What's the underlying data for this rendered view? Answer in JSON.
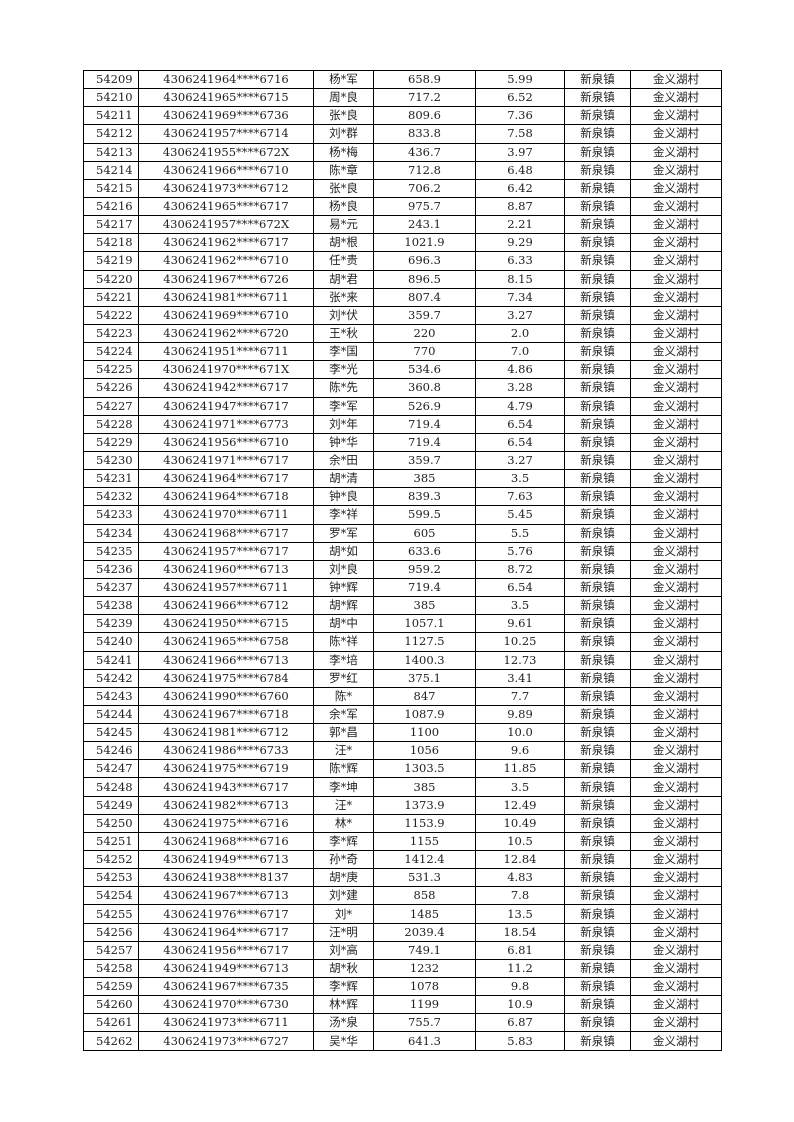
{
  "table": {
    "rows": [
      [
        "54209",
        "4306241964****6716",
        "杨*军",
        "658.9",
        "5.99",
        "新泉镇",
        "金义湖村"
      ],
      [
        "54210",
        "4306241965****6715",
        "周*良",
        "717.2",
        "6.52",
        "新泉镇",
        "金义湖村"
      ],
      [
        "54211",
        "4306241969****6736",
        "张*良",
        "809.6",
        "7.36",
        "新泉镇",
        "金义湖村"
      ],
      [
        "54212",
        "4306241957****6714",
        "刘*群",
        "833.8",
        "7.58",
        "新泉镇",
        "金义湖村"
      ],
      [
        "54213",
        "4306241955****672X",
        "杨*梅",
        "436.7",
        "3.97",
        "新泉镇",
        "金义湖村"
      ],
      [
        "54214",
        "4306241966****6710",
        "陈*章",
        "712.8",
        "6.48",
        "新泉镇",
        "金义湖村"
      ],
      [
        "54215",
        "4306241973****6712",
        "张*良",
        "706.2",
        "6.42",
        "新泉镇",
        "金义湖村"
      ],
      [
        "54216",
        "4306241965****6717",
        "杨*良",
        "975.7",
        "8.87",
        "新泉镇",
        "金义湖村"
      ],
      [
        "54217",
        "4306241957****672X",
        "易*元",
        "243.1",
        "2.21",
        "新泉镇",
        "金义湖村"
      ],
      [
        "54218",
        "4306241962****6717",
        "胡*根",
        "1021.9",
        "9.29",
        "新泉镇",
        "金义湖村"
      ],
      [
        "54219",
        "4306241962****6710",
        "任*贵",
        "696.3",
        "6.33",
        "新泉镇",
        "金义湖村"
      ],
      [
        "54220",
        "4306241967****6726",
        "胡*君",
        "896.5",
        "8.15",
        "新泉镇",
        "金义湖村"
      ],
      [
        "54221",
        "4306241981****6711",
        "张*来",
        "807.4",
        "7.34",
        "新泉镇",
        "金义湖村"
      ],
      [
        "54222",
        "4306241969****6710",
        "刘*伏",
        "359.7",
        "3.27",
        "新泉镇",
        "金义湖村"
      ],
      [
        "54223",
        "4306241962****6720",
        "王*秋",
        "220",
        "2.0",
        "新泉镇",
        "金义湖村"
      ],
      [
        "54224",
        "4306241951****6711",
        "李*国",
        "770",
        "7.0",
        "新泉镇",
        "金义湖村"
      ],
      [
        "54225",
        "4306241970****671X",
        "李*光",
        "534.6",
        "4.86",
        "新泉镇",
        "金义湖村"
      ],
      [
        "54226",
        "4306241942****6717",
        "陈*先",
        "360.8",
        "3.28",
        "新泉镇",
        "金义湖村"
      ],
      [
        "54227",
        "4306241947****6717",
        "李*军",
        "526.9",
        "4.79",
        "新泉镇",
        "金义湖村"
      ],
      [
        "54228",
        "4306241971****6773",
        "刘*年",
        "719.4",
        "6.54",
        "新泉镇",
        "金义湖村"
      ],
      [
        "54229",
        "4306241956****6710",
        "钟*华",
        "719.4",
        "6.54",
        "新泉镇",
        "金义湖村"
      ],
      [
        "54230",
        "4306241971****6717",
        "余*田",
        "359.7",
        "3.27",
        "新泉镇",
        "金义湖村"
      ],
      [
        "54231",
        "4306241964****6717",
        "胡*清",
        "385",
        "3.5",
        "新泉镇",
        "金义湖村"
      ],
      [
        "54232",
        "4306241964****6718",
        "钟*良",
        "839.3",
        "7.63",
        "新泉镇",
        "金义湖村"
      ],
      [
        "54233",
        "4306241970****6711",
        "李*祥",
        "599.5",
        "5.45",
        "新泉镇",
        "金义湖村"
      ],
      [
        "54234",
        "4306241968****6717",
        "罗*军",
        "605",
        "5.5",
        "新泉镇",
        "金义湖村"
      ],
      [
        "54235",
        "4306241957****6717",
        "胡*如",
        "633.6",
        "5.76",
        "新泉镇",
        "金义湖村"
      ],
      [
        "54236",
        "4306241960****6713",
        "刘*良",
        "959.2",
        "8.72",
        "新泉镇",
        "金义湖村"
      ],
      [
        "54237",
        "4306241957****6711",
        "钟*辉",
        "719.4",
        "6.54",
        "新泉镇",
        "金义湖村"
      ],
      [
        "54238",
        "4306241966****6712",
        "胡*辉",
        "385",
        "3.5",
        "新泉镇",
        "金义湖村"
      ],
      [
        "54239",
        "4306241950****6715",
        "胡*中",
        "1057.1",
        "9.61",
        "新泉镇",
        "金义湖村"
      ],
      [
        "54240",
        "4306241965****6758",
        "陈*祥",
        "1127.5",
        "10.25",
        "新泉镇",
        "金义湖村"
      ],
      [
        "54241",
        "4306241966****6713",
        "李*培",
        "1400.3",
        "12.73",
        "新泉镇",
        "金义湖村"
      ],
      [
        "54242",
        "4306241975****6784",
        "罗*红",
        "375.1",
        "3.41",
        "新泉镇",
        "金义湖村"
      ],
      [
        "54243",
        "4306241990****6760",
        "陈*",
        "847",
        "7.7",
        "新泉镇",
        "金义湖村"
      ],
      [
        "54244",
        "4306241967****6718",
        "余*军",
        "1087.9",
        "9.89",
        "新泉镇",
        "金义湖村"
      ],
      [
        "54245",
        "4306241981****6712",
        "郭*昌",
        "1100",
        "10.0",
        "新泉镇",
        "金义湖村"
      ],
      [
        "54246",
        "4306241986****6733",
        "汪*",
        "1056",
        "9.6",
        "新泉镇",
        "金义湖村"
      ],
      [
        "54247",
        "4306241975****6719",
        "陈*辉",
        "1303.5",
        "11.85",
        "新泉镇",
        "金义湖村"
      ],
      [
        "54248",
        "4306241943****6717",
        "李*坤",
        "385",
        "3.5",
        "新泉镇",
        "金义湖村"
      ],
      [
        "54249",
        "4306241982****6713",
        "汪*",
        "1373.9",
        "12.49",
        "新泉镇",
        "金义湖村"
      ],
      [
        "54250",
        "4306241975****6716",
        "林*",
        "1153.9",
        "10.49",
        "新泉镇",
        "金义湖村"
      ],
      [
        "54251",
        "4306241968****6716",
        "李*辉",
        "1155",
        "10.5",
        "新泉镇",
        "金义湖村"
      ],
      [
        "54252",
        "4306241949****6713",
        "孙*奇",
        "1412.4",
        "12.84",
        "新泉镇",
        "金义湖村"
      ],
      [
        "54253",
        "4306241938****8137",
        "胡*庚",
        "531.3",
        "4.83",
        "新泉镇",
        "金义湖村"
      ],
      [
        "54254",
        "4306241967****6713",
        "刘*建",
        "858",
        "7.8",
        "新泉镇",
        "金义湖村"
      ],
      [
        "54255",
        "4306241976****6717",
        "刘*",
        "1485",
        "13.5",
        "新泉镇",
        "金义湖村"
      ],
      [
        "54256",
        "4306241964****6717",
        "汪*明",
        "2039.4",
        "18.54",
        "新泉镇",
        "金义湖村"
      ],
      [
        "54257",
        "4306241956****6717",
        "刘*高",
        "749.1",
        "6.81",
        "新泉镇",
        "金义湖村"
      ],
      [
        "54258",
        "4306241949****6713",
        "胡*秋",
        "1232",
        "11.2",
        "新泉镇",
        "金义湖村"
      ],
      [
        "54259",
        "4306241967****6735",
        "李*辉",
        "1078",
        "9.8",
        "新泉镇",
        "金义湖村"
      ],
      [
        "54260",
        "4306241970****6730",
        "林*辉",
        "1199",
        "10.9",
        "新泉镇",
        "金义湖村"
      ],
      [
        "54261",
        "4306241973****6711",
        "汤*泉",
        "755.7",
        "6.87",
        "新泉镇",
        "金义湖村"
      ],
      [
        "54262",
        "4306241973****6727",
        "吴*华",
        "641.3",
        "5.83",
        "新泉镇",
        "金义湖村"
      ]
    ]
  }
}
